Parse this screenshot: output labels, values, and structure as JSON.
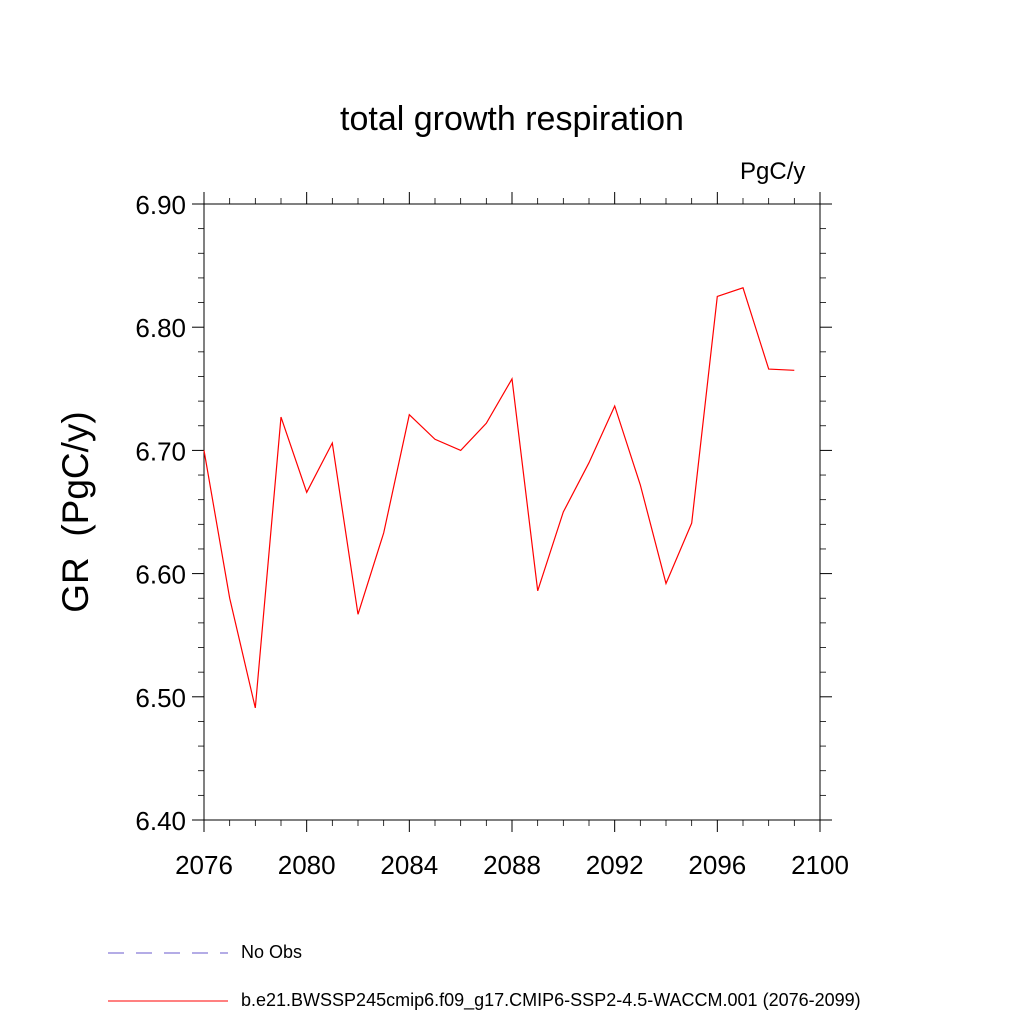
{
  "chart_data": {
    "type": "line",
    "title": "total growth respiration",
    "units_label": "PgC/y",
    "ylabel": "GR  (PgC/y)",
    "xlim": [
      2076,
      2100
    ],
    "ylim": [
      6.4,
      6.9
    ],
    "x_ticks": [
      "2076",
      "2080",
      "2084",
      "2088",
      "2092",
      "2096",
      "2100"
    ],
    "y_ticks": [
      "6.40",
      "6.50",
      "6.60",
      "6.70",
      "6.80",
      "6.90"
    ],
    "series": [
      {
        "name": "b.e21.BWSSP245cmip6.f09_g17.CMIP6-SSP2-4.5-WACCM.001 (2076-2099)",
        "color": "#ff0000",
        "x": [
          2076,
          2077,
          2078,
          2079,
          2080,
          2081,
          2082,
          2083,
          2084,
          2085,
          2086,
          2087,
          2088,
          2089,
          2090,
          2091,
          2092,
          2093,
          2094,
          2095,
          2096,
          2097,
          2098,
          2099
        ],
        "y": [
          6.7,
          6.58,
          6.491,
          6.727,
          6.666,
          6.706,
          6.567,
          6.633,
          6.729,
          6.709,
          6.7,
          6.722,
          6.758,
          6.586,
          6.65,
          6.69,
          6.736,
          6.672,
          6.592,
          6.641,
          6.825,
          6.832,
          6.766,
          6.765
        ]
      }
    ],
    "legend": [
      {
        "label": "No Obs",
        "color": "#6a5acd",
        "style": "dashed"
      },
      {
        "label": "b.e21.BWSSP245cmip6.f09_g17.CMIP6-SSP2-4.5-WACCM.001 (2076-2099)",
        "color": "#ff0000",
        "style": "solid"
      }
    ]
  }
}
